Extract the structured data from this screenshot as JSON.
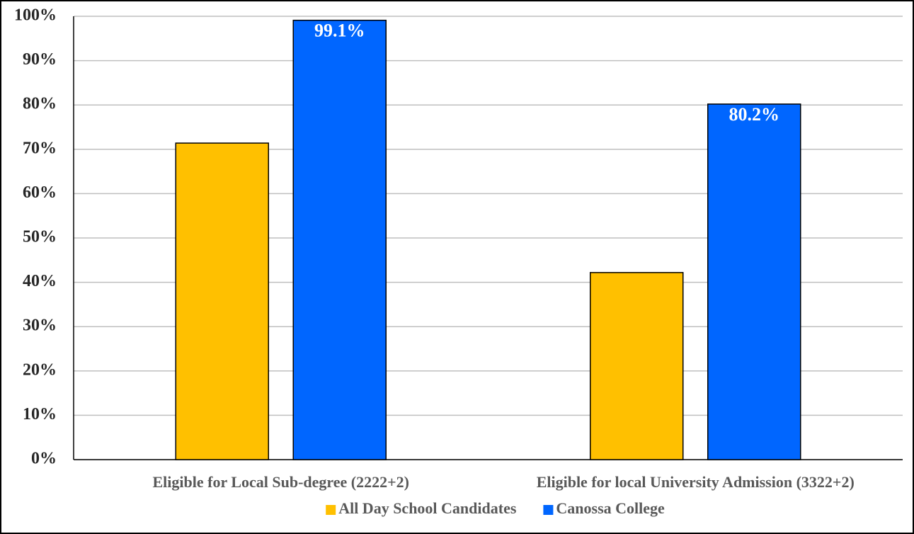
{
  "chart_data": {
    "type": "bar",
    "categories": [
      "Eligible for Local Sub-degree (2222+2)",
      "Eligible for local University Admission (3322+2)"
    ],
    "series": [
      {
        "name": "All Day School Candidates",
        "color": "#FFC000",
        "values": [
          71.4,
          42.2
        ]
      },
      {
        "name": "Canossa College",
        "color": "#0066FF",
        "values": [
          99.1,
          80.2
        ],
        "value_labels": [
          "99.1%",
          "80.2%"
        ]
      }
    ],
    "ylim": [
      0,
      100
    ],
    "yticks": [
      {
        "value": 0,
        "label": "0%"
      },
      {
        "value": 10,
        "label": "10%"
      },
      {
        "value": 20,
        "label": "20%"
      },
      {
        "value": 30,
        "label": "30%"
      },
      {
        "value": 40,
        "label": "40%"
      },
      {
        "value": 50,
        "label": "50%"
      },
      {
        "value": 60,
        "label": "60%"
      },
      {
        "value": 70,
        "label": "70%"
      },
      {
        "value": 80,
        "label": "80%"
      },
      {
        "value": 90,
        "label": "90%"
      },
      {
        "value": 100,
        "label": "100%"
      }
    ],
    "grid": true,
    "legend": "bottom"
  }
}
